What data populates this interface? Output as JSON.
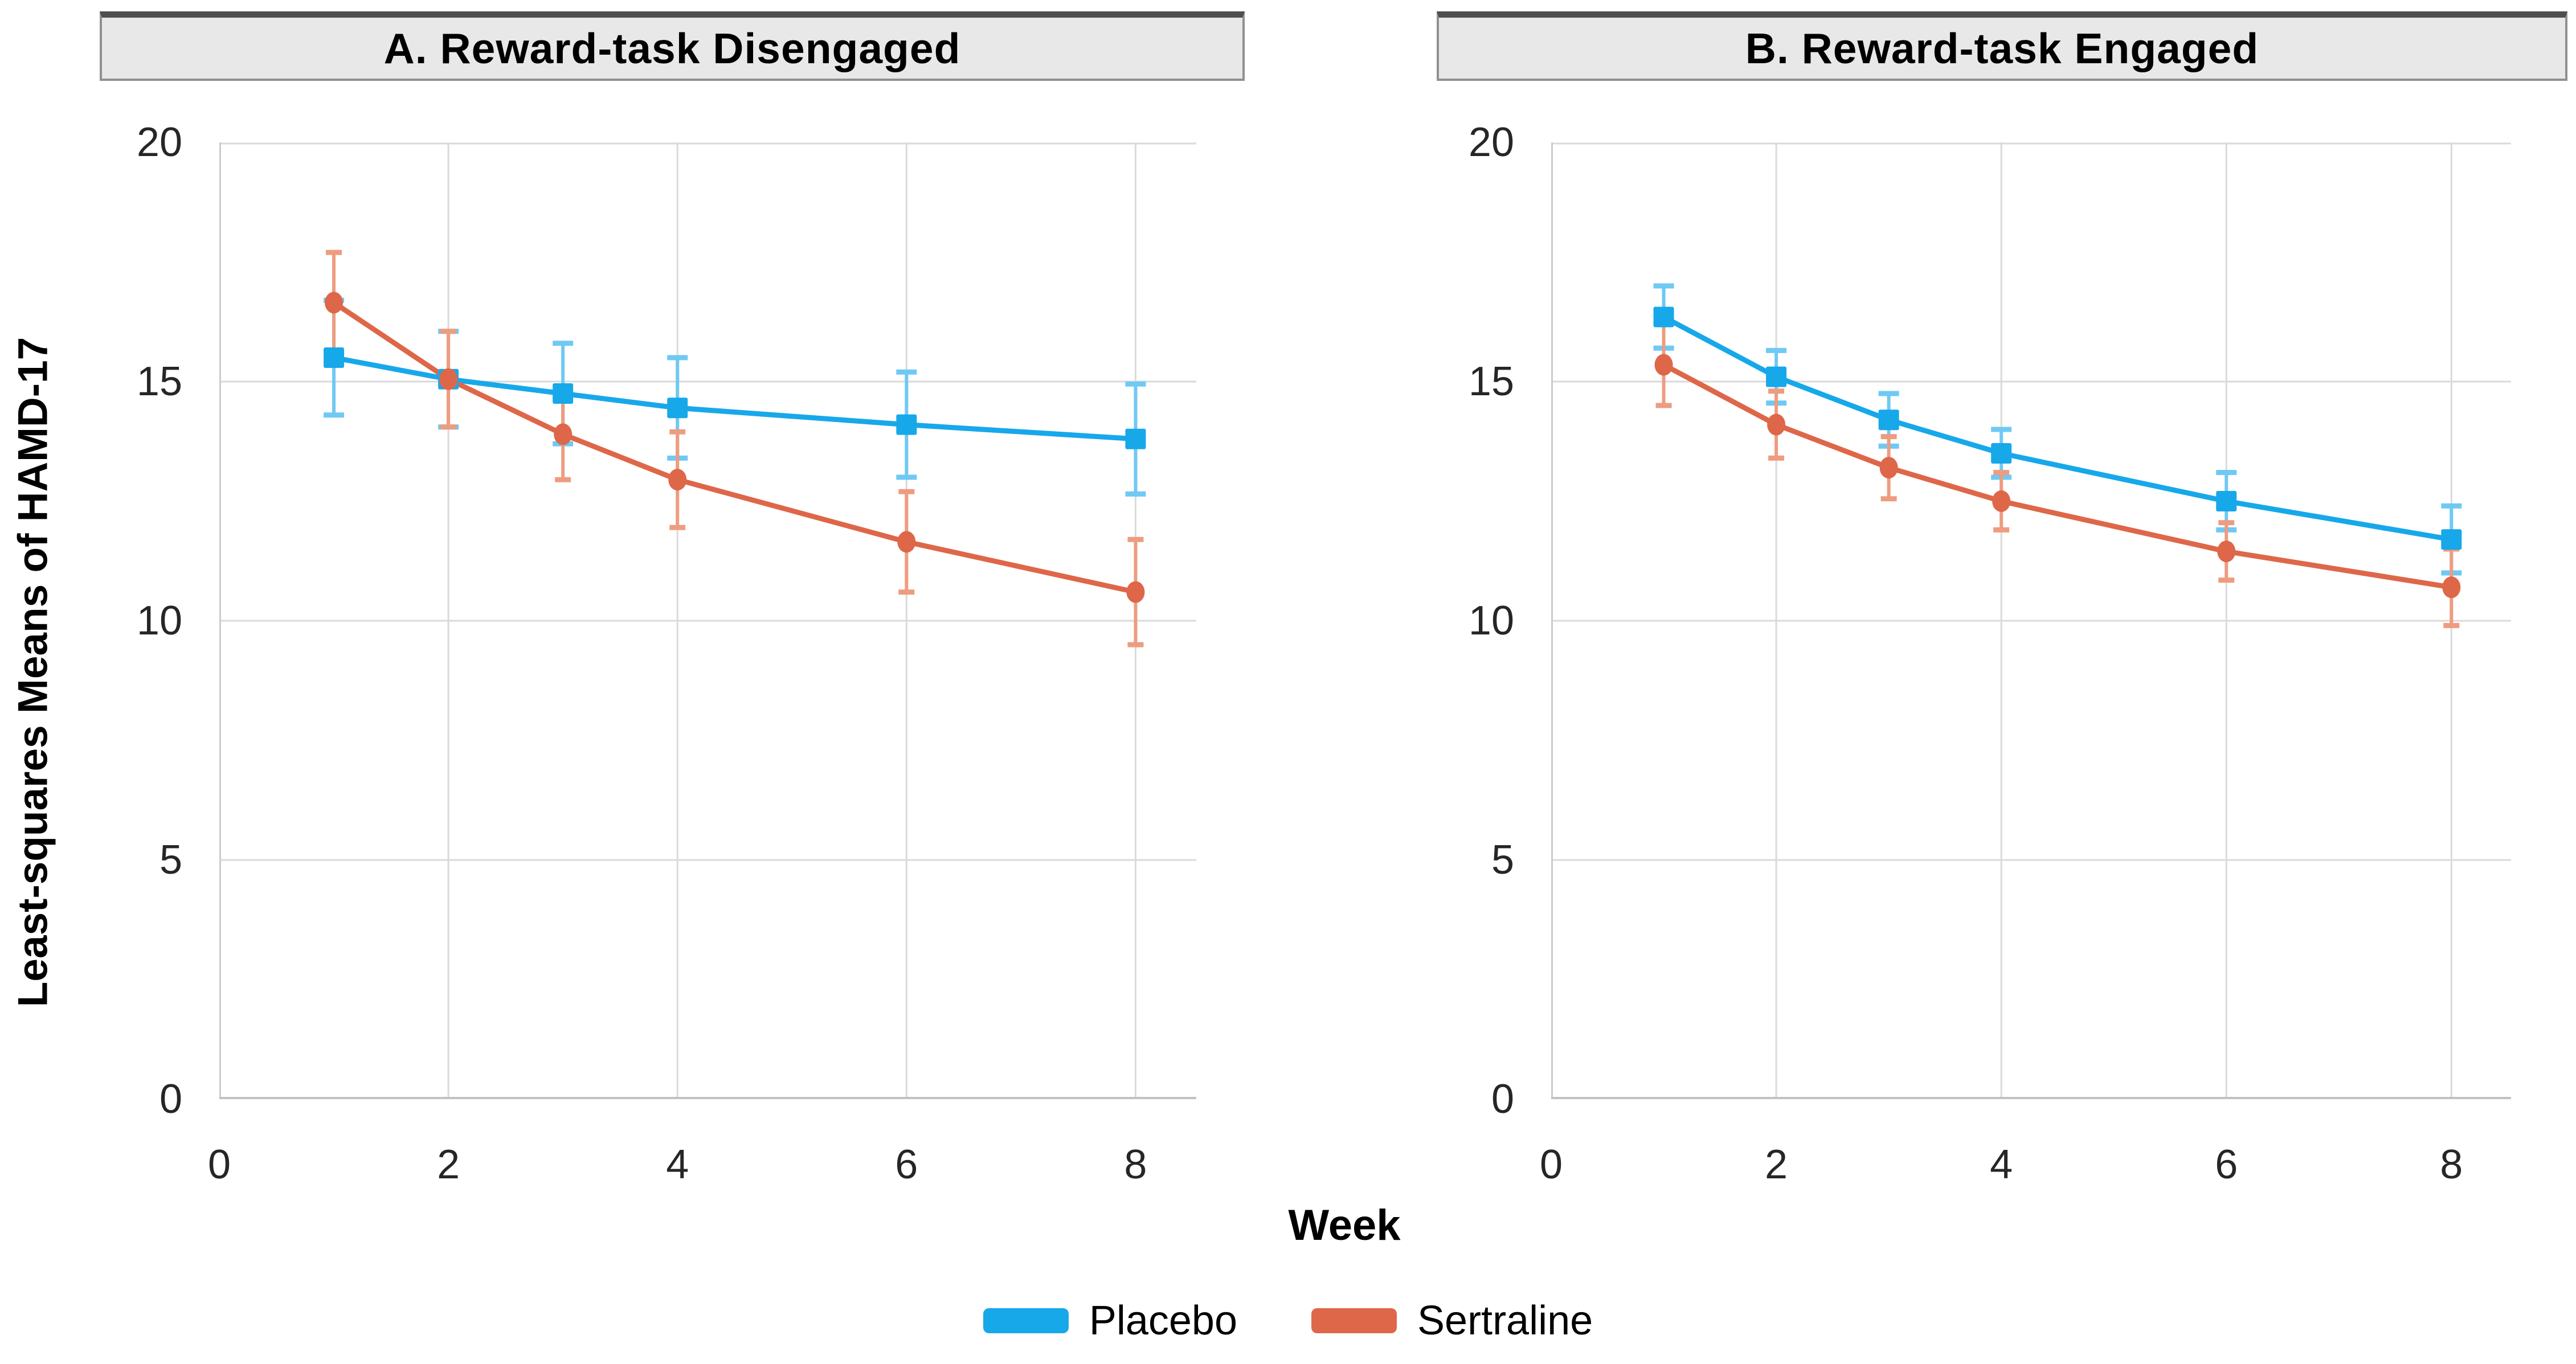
{
  "figure": {
    "ylabel": "Least-squares Means of HAMD-17",
    "xlabel": "Week"
  },
  "legend": [
    {
      "label": "Placebo",
      "color": "#17A8EA"
    },
    {
      "label": "Sertraline",
      "color": "#DE6749"
    }
  ],
  "style": {
    "grid_color": "#DADADA",
    "x_axis_color": "#C2C2C2",
    "y_axis_color": "#CCCCCC",
    "title_box_bg": "#E8E8E8",
    "placebo_color": "#17A8EA",
    "placebo_error_color": "#6FC9F3",
    "sertraline_color": "#DE6749",
    "sertraline_error_color": "#EE9C80"
  },
  "chart_data": [
    {
      "type": "line",
      "title": "A. Reward-task Disengaged",
      "xlabel": "Week",
      "ylabel": "Least-squares Means of HAMD-17",
      "x": [
        1,
        2,
        3,
        4,
        6,
        8
      ],
      "xticks": [
        0,
        2,
        4,
        6,
        8
      ],
      "yticks": [
        0,
        5,
        10,
        15,
        20
      ],
      "xlim": [
        0,
        8.53
      ],
      "ylim": [
        0,
        20
      ],
      "grid": true,
      "legend_position": "bottom",
      "series": [
        {
          "name": "Placebo",
          "marker": "square",
          "color": "#17A8EA",
          "error_color": "#6FC9F3",
          "values": [
            15.5,
            15.05,
            14.75,
            14.45,
            14.1,
            13.8
          ],
          "error": [
            1.2,
            1.0,
            1.05,
            1.05,
            1.1,
            1.15
          ]
        },
        {
          "name": "Sertraline",
          "marker": "circle",
          "color": "#DE6749",
          "error_color": "#EE9C80",
          "values": [
            16.65,
            15.05,
            13.9,
            12.95,
            11.65,
            10.6
          ],
          "error": [
            1.05,
            1.0,
            0.95,
            1.0,
            1.05,
            1.1
          ]
        }
      ]
    },
    {
      "type": "line",
      "title": "B. Reward-task Engaged",
      "xlabel": "Week",
      "ylabel": "Least-squares Means of HAMD-17",
      "x": [
        1,
        2,
        3,
        4,
        6,
        8
      ],
      "xticks": [
        0,
        2,
        4,
        6,
        8
      ],
      "yticks": [
        0,
        5,
        10,
        15,
        20
      ],
      "xlim": [
        0,
        8.53
      ],
      "ylim": [
        0,
        20
      ],
      "grid": true,
      "legend_position": "bottom",
      "series": [
        {
          "name": "Placebo",
          "marker": "square",
          "color": "#17A8EA",
          "error_color": "#6FC9F3",
          "values": [
            16.35,
            15.1,
            14.2,
            13.5,
            12.5,
            11.7
          ],
          "error": [
            0.65,
            0.55,
            0.55,
            0.5,
            0.6,
            0.7
          ]
        },
        {
          "name": "Sertraline",
          "marker": "circle",
          "color": "#DE6749",
          "error_color": "#EE9C80",
          "values": [
            15.35,
            14.1,
            13.2,
            12.5,
            11.45,
            10.7
          ],
          "error": [
            0.85,
            0.7,
            0.65,
            0.6,
            0.6,
            0.8
          ]
        }
      ]
    }
  ]
}
